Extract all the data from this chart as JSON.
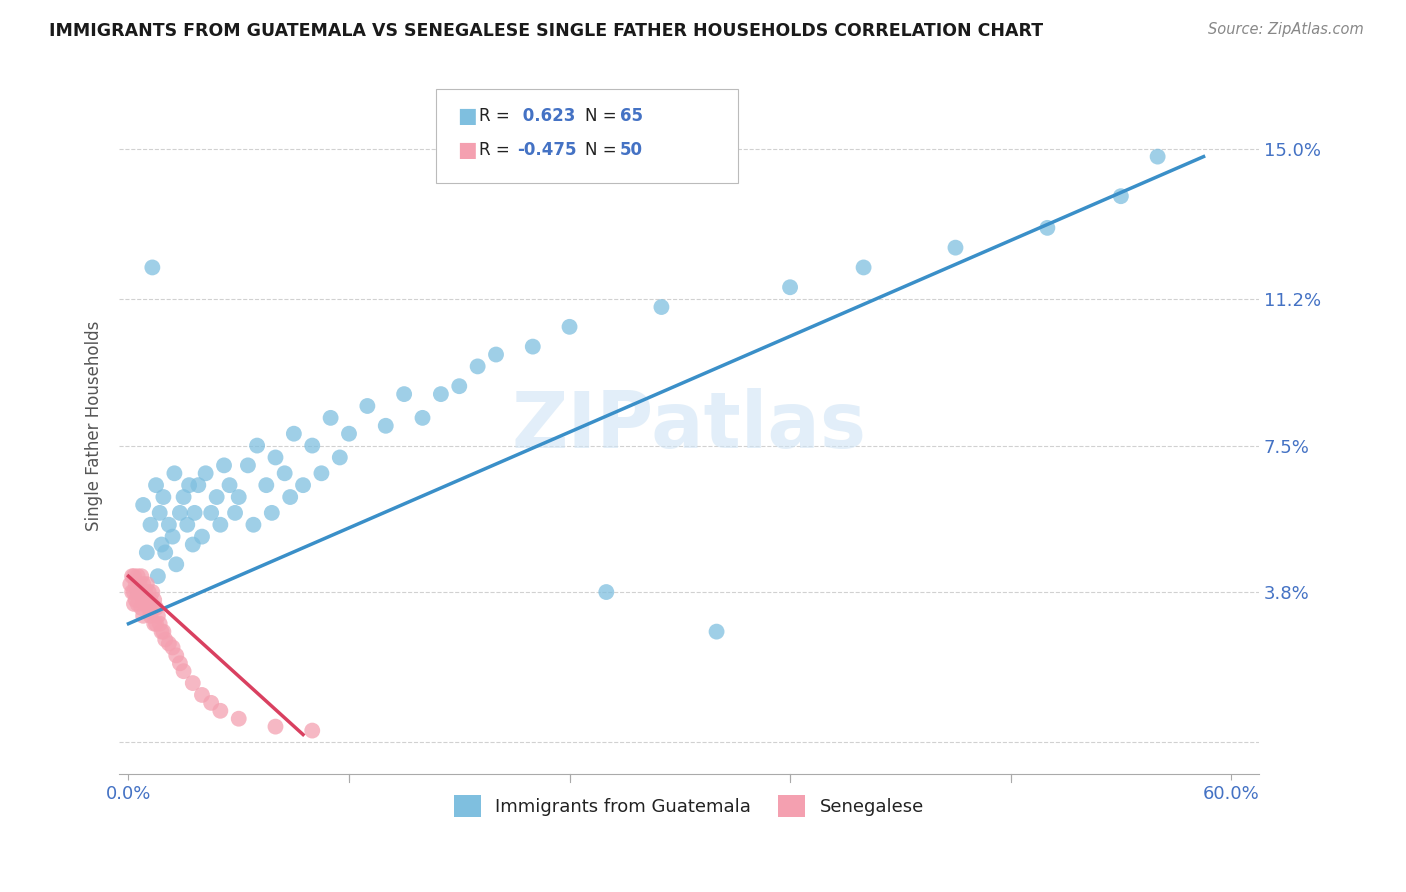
{
  "title": "IMMIGRANTS FROM GUATEMALA VS SENEGALESE SINGLE FATHER HOUSEHOLDS CORRELATION CHART",
  "source": "Source: ZipAtlas.com",
  "ylabel": "Single Father Households",
  "xlim": [
    -0.005,
    0.615
  ],
  "ylim": [
    -0.008,
    0.168
  ],
  "xtick_positions": [
    0.0,
    0.12,
    0.24,
    0.36,
    0.48,
    0.6
  ],
  "xticklabels": [
    "0.0%",
    "",
    "",
    "",
    "",
    "60.0%"
  ],
  "ytick_vals": [
    0.0,
    0.038,
    0.075,
    0.112,
    0.15
  ],
  "ytick_labels_right": [
    "",
    "3.8%",
    "7.5%",
    "11.2%",
    "15.0%"
  ],
  "blue_color": "#7fbfdf",
  "pink_color": "#f4a0b0",
  "blue_line_color": "#3a8fc8",
  "pink_line_color": "#d94060",
  "legend_label_blue": "Immigrants from Guatemala",
  "legend_label_pink": "Senegalese",
  "watermark": "ZIPatlas",
  "title_color": "#1a1a1a",
  "axis_label_color": "#4472c4",
  "grid_color": "#cccccc",
  "legend_r_color": "#4472c4",
  "blue_scatter_x": [
    0.005,
    0.008,
    0.01,
    0.012,
    0.013,
    0.015,
    0.016,
    0.017,
    0.018,
    0.019,
    0.02,
    0.022,
    0.024,
    0.025,
    0.026,
    0.028,
    0.03,
    0.032,
    0.033,
    0.035,
    0.036,
    0.038,
    0.04,
    0.042,
    0.045,
    0.048,
    0.05,
    0.052,
    0.055,
    0.058,
    0.06,
    0.065,
    0.068,
    0.07,
    0.075,
    0.078,
    0.08,
    0.085,
    0.088,
    0.09,
    0.095,
    0.1,
    0.105,
    0.11,
    0.115,
    0.12,
    0.13,
    0.14,
    0.15,
    0.16,
    0.17,
    0.18,
    0.19,
    0.2,
    0.22,
    0.24,
    0.26,
    0.29,
    0.32,
    0.36,
    0.4,
    0.45,
    0.5,
    0.54,
    0.56
  ],
  "blue_scatter_y": [
    0.038,
    0.06,
    0.048,
    0.055,
    0.12,
    0.065,
    0.042,
    0.058,
    0.05,
    0.062,
    0.048,
    0.055,
    0.052,
    0.068,
    0.045,
    0.058,
    0.062,
    0.055,
    0.065,
    0.05,
    0.058,
    0.065,
    0.052,
    0.068,
    0.058,
    0.062,
    0.055,
    0.07,
    0.065,
    0.058,
    0.062,
    0.07,
    0.055,
    0.075,
    0.065,
    0.058,
    0.072,
    0.068,
    0.062,
    0.078,
    0.065,
    0.075,
    0.068,
    0.082,
    0.072,
    0.078,
    0.085,
    0.08,
    0.088,
    0.082,
    0.088,
    0.09,
    0.095,
    0.098,
    0.1,
    0.105,
    0.038,
    0.11,
    0.028,
    0.115,
    0.12,
    0.125,
    0.13,
    0.138,
    0.148
  ],
  "pink_scatter_x": [
    0.001,
    0.002,
    0.002,
    0.003,
    0.003,
    0.003,
    0.004,
    0.004,
    0.005,
    0.005,
    0.005,
    0.006,
    0.006,
    0.007,
    0.007,
    0.007,
    0.008,
    0.008,
    0.008,
    0.009,
    0.009,
    0.01,
    0.01,
    0.011,
    0.011,
    0.012,
    0.012,
    0.013,
    0.013,
    0.014,
    0.014,
    0.015,
    0.015,
    0.016,
    0.017,
    0.018,
    0.019,
    0.02,
    0.022,
    0.024,
    0.026,
    0.028,
    0.03,
    0.035,
    0.04,
    0.045,
    0.05,
    0.06,
    0.08,
    0.1
  ],
  "pink_scatter_y": [
    0.04,
    0.042,
    0.038,
    0.042,
    0.038,
    0.035,
    0.04,
    0.036,
    0.042,
    0.038,
    0.035,
    0.04,
    0.038,
    0.042,
    0.038,
    0.034,
    0.04,
    0.036,
    0.032,
    0.038,
    0.035,
    0.04,
    0.036,
    0.038,
    0.034,
    0.036,
    0.032,
    0.038,
    0.034,
    0.036,
    0.03,
    0.034,
    0.03,
    0.032,
    0.03,
    0.028,
    0.028,
    0.026,
    0.025,
    0.024,
    0.022,
    0.02,
    0.018,
    0.015,
    0.012,
    0.01,
    0.008,
    0.006,
    0.004,
    0.003
  ],
  "blue_line_x0": 0.0,
  "blue_line_x1": 0.585,
  "blue_line_y0": 0.03,
  "blue_line_y1": 0.148,
  "pink_line_x0": 0.0,
  "pink_line_x1": 0.095,
  "pink_line_y0": 0.042,
  "pink_line_y1": 0.002
}
